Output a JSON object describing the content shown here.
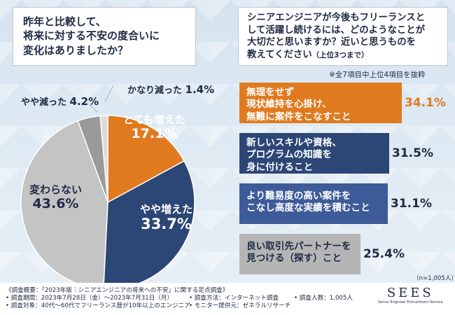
{
  "q1": {
    "line1": "昨年と比較して、",
    "line2": "将来に対する不安の度合いに",
    "line3": "変化はありましたか？"
  },
  "q2": {
    "line1": "シニアエンジニアが今後もフリーランスと",
    "line2": "して活躍し続けるには、どのようなことが",
    "line3": "大切だと思いますか？近いと思うものを",
    "line4": "教えてください",
    "line4_sub": "（上位3つまで）"
  },
  "bar_note": "※全7項目中上位4項目を抜粋",
  "sample_note": "（n=1,005人）",
  "footer": {
    "overview": "《調査概要：「2023年版｜シニアエンジニアの将来への不安」に関する定点調査》",
    "period": "• 調査期間：2023年7月28日（金）〜2023年7月31日（月）",
    "method": "• 調査方法：インターネット調査",
    "count": "• 調査人数：1,005人",
    "target": "• 調査対象：40代〜60代でフリーランス歴が10年以上のエンジニア",
    "provider": "• モニター提供元：ゼネラルリサーチ"
  },
  "logo": {
    "main": "SEES",
    "tag": "Senior Engineer Entrustment Service"
  },
  "chart_data": [
    {
      "type": "pie",
      "title": "昨年と比較して、将来に対する不安の度合いに変化はありましたか？",
      "slices": [
        {
          "label": "とても増えた",
          "value": 17.1,
          "color": "#e07a1f"
        },
        {
          "label": "やや増えた",
          "value": 33.7,
          "color": "#2c4675"
        },
        {
          "label": "変わらない",
          "value": 43.6,
          "color": "#c4c4c4"
        },
        {
          "label": "やや減った",
          "value": 4.2,
          "color": "#9a9a9a"
        },
        {
          "label": "かなり減った",
          "value": 1.4,
          "color": "#dcdcdc"
        }
      ],
      "value_labels": {
        "very_increased": "17.1%",
        "somewhat_increased": "33.7%",
        "unchanged": "43.6%",
        "somewhat_decreased": "4.2%",
        "greatly_decreased": "1.4%"
      }
    },
    {
      "type": "bar",
      "orientation": "horizontal",
      "title": "シニアエンジニアが今後もフリーランスとして活躍し続けるには、どのようなことが大切だと思いますか？",
      "items": [
        {
          "line1": "無理をせず",
          "line2": "現状維持を心掛け、",
          "line3": "無難に案件をこなすこと",
          "value": 34.1,
          "label": "34.1%",
          "color": "#e07a1f"
        },
        {
          "line1": "新しいスキルや資格、",
          "line2": "プログラムの知識を",
          "line3": "身に付けること",
          "value": 31.5,
          "label": "31.5%",
          "color": "#2c4675"
        },
        {
          "line1": "より難易度の高い案件を",
          "line2": "こなし高度な実績を積むこと",
          "line3": "",
          "value": 31.1,
          "label": "31.1%",
          "color": "#3d5a99"
        },
        {
          "line1": "良い取引先パートナーを",
          "line2": "見つける（探す）こと",
          "line3": "",
          "value": 25.4,
          "label": "25.4%",
          "color": "#b5b5b5"
        }
      ]
    }
  ]
}
